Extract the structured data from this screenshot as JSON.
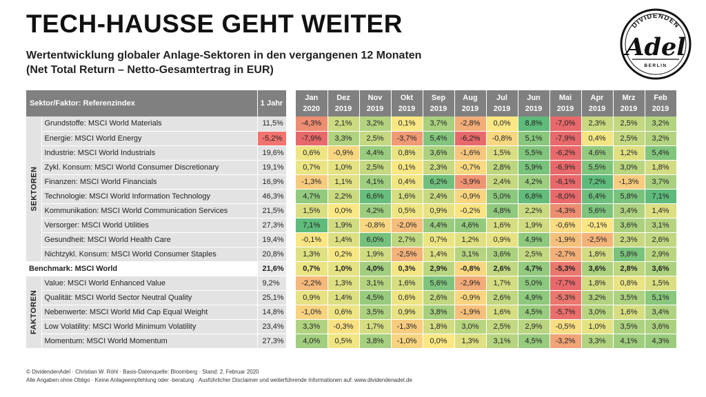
{
  "header": {
    "title": "TECH-HAUSSE GEHT WEITER",
    "subtitle_line1": "Wertentwicklung globaler Anlage-Sektoren in den vergangenen 12 Monaten",
    "subtitle_line2": "(Net Total Return – Netto-Gesamtertrag in EUR)"
  },
  "logo": {
    "top_text": "DIVIDENDEN",
    "main_text": "Adel",
    "bottom_text": "BERLIN"
  },
  "chart_data": {
    "type": "table",
    "name_header": "Sektor/Faktor: Referenzindex",
    "year_header": "1 Jahr",
    "months": [
      {
        "m": "Jan",
        "y": "2020"
      },
      {
        "m": "Dez",
        "y": "2019"
      },
      {
        "m": "Nov",
        "y": "2019"
      },
      {
        "m": "Okt",
        "y": "2019"
      },
      {
        "m": "Sep",
        "y": "2019"
      },
      {
        "m": "Aug",
        "y": "2019"
      },
      {
        "m": "Jul",
        "y": "2019"
      },
      {
        "m": "Jun",
        "y": "2019"
      },
      {
        "m": "Mai",
        "y": "2019"
      },
      {
        "m": "Apr",
        "y": "2019"
      },
      {
        "m": "Mrz",
        "y": "2019"
      },
      {
        "m": "Feb",
        "y": "2019"
      }
    ],
    "groups": [
      {
        "label": "SEKTOREN",
        "rows": [
          {
            "name": "Grundstoffe: MSCI World Materials",
            "year": 11.5,
            "months": [
              -4.3,
              2.1,
              3.2,
              0.1,
              3.7,
              -2.8,
              0.0,
              8.8,
              -7.0,
              2.3,
              2.5,
              3.2
            ]
          },
          {
            "name": "Energie: MSCI World Energy",
            "year": -5.2,
            "months": [
              -7.9,
              3.3,
              2.5,
              -3.7,
              5.4,
              -6.2,
              -0.8,
              5.1,
              -7.9,
              0.4,
              2.5,
              3.2
            ]
          },
          {
            "name": "Industrie: MSCI World Industrials",
            "year": 19.6,
            "months": [
              0.6,
              -0.9,
              4.4,
              0.8,
              3.6,
              -1.6,
              1.5,
              5.5,
              -6.2,
              4.6,
              1.2,
              5.4
            ]
          },
          {
            "name": "Zykl. Konsum: MSCI World Consumer Discretionary",
            "year": 19.1,
            "months": [
              0.7,
              1.0,
              2.5,
              0.1,
              2.3,
              -0.7,
              2.8,
              5.9,
              -6.9,
              5.5,
              3.0,
              1.8
            ]
          },
          {
            "name": "Finanzen: MSCI World Financials",
            "year": 16.9,
            "months": [
              -1.3,
              1.1,
              4.1,
              0.4,
              6.2,
              -3.9,
              2.4,
              4.2,
              -6.1,
              7.2,
              -1.3,
              3.7
            ]
          },
          {
            "name": "Technologie: MSCI World Information Technology",
            "year": 46.3,
            "months": [
              4.7,
              2.2,
              6.6,
              1.6,
              2.4,
              -0.9,
              5.0,
              6.8,
              -8.0,
              6.4,
              5.8,
              7.1
            ]
          },
          {
            "name": "Kommunikation: MSCI World Communication Services",
            "year": 21.5,
            "months": [
              1.5,
              0.0,
              4.2,
              0.5,
              0.9,
              -0.2,
              4.8,
              2.2,
              -4.3,
              5.6,
              3.4,
              1.4
            ]
          },
          {
            "name": "Versorger: MSCI World Utilities",
            "year": 27.3,
            "months": [
              7.1,
              1.9,
              -0.8,
              -2.0,
              4.4,
              4.6,
              1.6,
              1.9,
              -0.6,
              -0.1,
              3.6,
              3.1
            ]
          },
          {
            "name": "Gesundheit: MSCI World Health Care",
            "year": 19.4,
            "months": [
              -0.1,
              1.4,
              6.0,
              2.7,
              0.7,
              1.2,
              0.9,
              4.9,
              -1.9,
              -2.5,
              2.3,
              2.6
            ]
          },
          {
            "name": "Nichtzykl. Konsum: MSCI World Consumer Staples",
            "year": 20.8,
            "months": [
              1.3,
              0.2,
              1.9,
              -2.5,
              1.4,
              3.1,
              3.6,
              2.5,
              -2.7,
              1.8,
              5.8,
              2.9
            ]
          }
        ]
      },
      {
        "benchmark": true,
        "rows": [
          {
            "name": "Benchmark: MSCI World",
            "year": 21.6,
            "months": [
              0.7,
              1.0,
              4.0,
              0.3,
              2.9,
              -0.8,
              2.6,
              4.7,
              -5.3,
              3.6,
              2.8,
              3.6
            ]
          }
        ]
      },
      {
        "label": "FAKTOREN",
        "rows": [
          {
            "name": "Value: MSCI World Enhanced Value",
            "year": 9.2,
            "months": [
              -2.2,
              1.3,
              3.1,
              1.6,
              5.6,
              -2.9,
              1.7,
              5.0,
              -7.7,
              1.8,
              0.8,
              1.5
            ]
          },
          {
            "name": "Qualität: MSCI World Sector Neutral Quality",
            "year": 25.1,
            "months": [
              0.9,
              1.4,
              4.5,
              0.6,
              2.6,
              -0.9,
              2.6,
              4.9,
              -5.3,
              3.2,
              3.5,
              5.1
            ]
          },
          {
            "name": "Nebenwerte: MSCI World Mid Cap Equal Weight",
            "year": 14.8,
            "months": [
              -1.0,
              0.6,
              3.5,
              0.9,
              3.8,
              -1.9,
              1.6,
              4.5,
              -5.7,
              3.0,
              1.6,
              3.4
            ]
          },
          {
            "name": "Low Volatility: MSCI World Minimum Volatility",
            "year": 23.4,
            "months": [
              3.3,
              -0.3,
              1.7,
              -1.3,
              1.8,
              3.0,
              2.5,
              2.9,
              -0.5,
              1.0,
              3.5,
              3.6
            ]
          },
          {
            "name": "Momentum: MSCI World Momentum",
            "year": 27.3,
            "months": [
              4.0,
              0.5,
              3.8,
              -1.0,
              0.0,
              1.3,
              3.1,
              4.5,
              -3.2,
              3.3,
              4.1,
              4.3
            ]
          }
        ]
      }
    ]
  },
  "colors": {
    "header_bg": "#808080",
    "label_bg": "#e3e3e3",
    "negative": "#e8696b",
    "neutral": "#fbe884",
    "positive": "#5fbb7b",
    "year_negative": "#f2736f"
  },
  "footer": {
    "line1": "© DividendenAdel · Christian W. Röhl · Basis-Datenquelle: Bloomberg · Stand: 2. Februar 2020",
    "line2": "Alle Angaben ohne Obligo · Keine Anlageempfehlung oder -beratung · Ausführlicher Disclaimer und weiterführende Informationen auf: www.dividendenadel.de"
  }
}
